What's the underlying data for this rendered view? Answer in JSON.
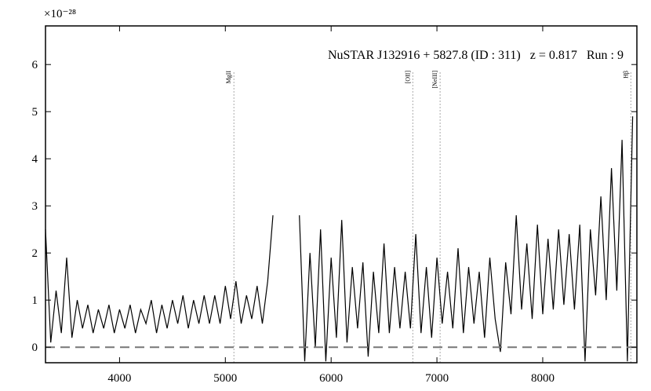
{
  "chart_data": {
    "type": "line",
    "title": "NuSTAR J132916 + 5827.8 (ID : 311)   z = 0.817   Run : 9",
    "y_multiplier": "×10⁻²⁸",
    "color": "#000000",
    "x": [
      3300,
      3350,
      3400,
      3450,
      3500,
      3550,
      3600,
      3650,
      3700,
      3750,
      3800,
      3850,
      3900,
      3950,
      4000,
      4050,
      4100,
      4150,
      4200,
      4250,
      4300,
      4350,
      4400,
      4450,
      4500,
      4550,
      4600,
      4650,
      4700,
      4750,
      4800,
      4850,
      4900,
      4950,
      5000,
      5050,
      5100,
      5150,
      5200,
      5250,
      5300,
      5350,
      5400,
      5450,
      5500,
      5550,
      5600,
      5650,
      5700,
      5750,
      5800,
      5850,
      5900,
      5950,
      6000,
      6050,
      6100,
      6150,
      6200,
      6250,
      6300,
      6350,
      6400,
      6450,
      6500,
      6550,
      6600,
      6650,
      6700,
      6750,
      6800,
      6850,
      6900,
      6950,
      7000,
      7050,
      7100,
      7150,
      7200,
      7250,
      7300,
      7350,
      7400,
      7450,
      7500,
      7550,
      7600,
      7650,
      7700,
      7750,
      7800,
      7850,
      7900,
      7950,
      8000,
      8050,
      8100,
      8150,
      8200,
      8250,
      8300,
      8350,
      8400,
      8450,
      8500,
      8550,
      8600,
      8650,
      8700,
      8750,
      8800,
      8850
    ],
    "values": [
      2.5,
      0.1,
      1.2,
      0.3,
      1.9,
      0.2,
      1.0,
      0.4,
      0.9,
      0.3,
      0.8,
      0.4,
      0.9,
      0.3,
      0.8,
      0.4,
      0.9,
      0.3,
      0.8,
      0.5,
      1.0,
      0.3,
      0.9,
      0.4,
      1.0,
      0.5,
      1.1,
      0.4,
      1.0,
      0.5,
      1.1,
      0.5,
      1.1,
      0.5,
      1.3,
      0.6,
      1.4,
      0.5,
      1.1,
      0.6,
      1.3,
      0.5,
      1.4,
      2.8,
      null,
      null,
      null,
      null,
      2.8,
      -0.3,
      2.0,
      0.0,
      2.5,
      -0.3,
      1.9,
      0.2,
      2.7,
      0.1,
      1.7,
      0.4,
      1.8,
      -0.2,
      1.6,
      0.3,
      2.2,
      0.3,
      1.7,
      0.4,
      1.6,
      0.4,
      2.4,
      0.3,
      1.7,
      0.2,
      1.9,
      0.5,
      1.6,
      0.4,
      2.1,
      0.3,
      1.7,
      0.5,
      1.6,
      0.2,
      1.9,
      0.6,
      -0.1,
      1.8,
      0.7,
      2.8,
      0.8,
      2.2,
      0.6,
      2.6,
      0.7,
      2.3,
      0.8,
      2.5,
      0.9,
      2.4,
      0.8,
      2.6,
      -0.3,
      2.5,
      1.1,
      3.2,
      1.0,
      3.8,
      1.2,
      4.4,
      -0.3,
      4.9
    ],
    "xlim": [
      3300,
      8890
    ],
    "xticks": [
      4000,
      5000,
      6000,
      7000,
      8000
    ],
    "ylim": [
      -0.33,
      6.82
    ],
    "yticks": [
      0,
      1,
      2,
      3,
      4,
      5,
      6
    ],
    "hline": 0,
    "lines": [
      {
        "x": 5081,
        "label": "MgII"
      },
      {
        "x": 6772,
        "label": "[OII]"
      },
      {
        "x": 7030,
        "label": "[NeIII]"
      },
      {
        "x": 8833,
        "label": "Hβ"
      }
    ]
  }
}
